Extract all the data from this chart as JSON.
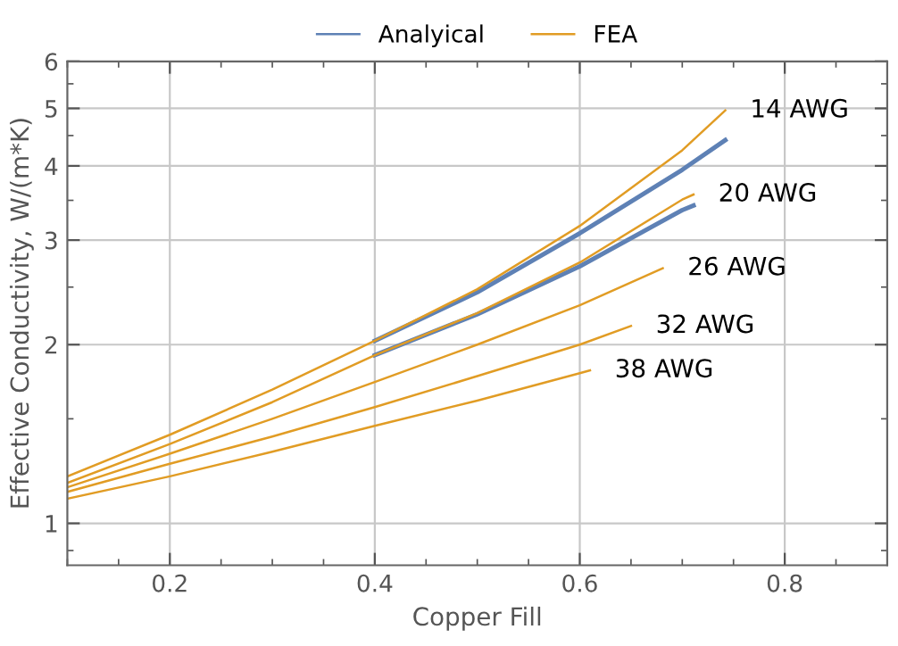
{
  "chart_data": {
    "type": "line",
    "xlabel": "Copper Fill",
    "ylabel": "Effective Conductivity, W/(m*K)",
    "log": "y",
    "xlim": [
      0.1,
      0.9
    ],
    "ylim": [
      0.85,
      6
    ],
    "xticks": [
      0.2,
      0.4,
      0.6,
      0.8
    ],
    "yticks": [
      1,
      2,
      3,
      4,
      5,
      6
    ],
    "grid": true,
    "legend": "top",
    "marker": "none",
    "line_style": "solid",
    "series": [
      {
        "name": "Analyical",
        "color": "#5e81b5",
        "x": [
          0.4,
          0.5,
          0.6,
          0.7,
          0.742
        ],
        "values": [
          2.03,
          2.45,
          3.08,
          3.94,
          4.42
        ]
      },
      {
        "color": "#5e81b5",
        "x": [
          0.4,
          0.5,
          0.6,
          0.7,
          0.711
        ],
        "values": [
          1.92,
          2.25,
          2.71,
          3.37,
          3.43
        ]
      },
      {
        "name": "FEA",
        "color": "#e19c24",
        "x": [
          0.1,
          0.2,
          0.3,
          0.4,
          0.5,
          0.6,
          0.7,
          0.742
        ],
        "values": [
          1.2,
          1.41,
          1.68,
          2.03,
          2.48,
          3.17,
          4.25,
          4.96
        ]
      },
      {
        "color": "#e19c24",
        "x": [
          0.1,
          0.2,
          0.3,
          0.4,
          0.5,
          0.6,
          0.7,
          0.711
        ],
        "values": [
          1.17,
          1.36,
          1.6,
          1.92,
          2.26,
          2.75,
          3.51,
          3.58
        ]
      },
      {
        "color": "#e19c24",
        "x": [
          0.1,
          0.2,
          0.3,
          0.4,
          0.5,
          0.6,
          0.681
        ],
        "values": [
          1.15,
          1.31,
          1.5,
          1.73,
          2.0,
          2.33,
          2.69
        ]
      },
      {
        "color": "#e19c24",
        "x": [
          0.1,
          0.2,
          0.3,
          0.4,
          0.5,
          0.6,
          0.65
        ],
        "values": [
          1.13,
          1.26,
          1.4,
          1.57,
          1.77,
          2.0,
          2.15
        ]
      },
      {
        "color": "#e19c24",
        "x": [
          0.1,
          0.2,
          0.3,
          0.4,
          0.5,
          0.6,
          0.61
        ],
        "values": [
          1.1,
          1.2,
          1.32,
          1.46,
          1.61,
          1.79,
          1.81
        ]
      }
    ],
    "annotations": [
      "14 AWG",
      "20 AWG",
      "26 AWG",
      "32 AWG",
      "38 AWG"
    ]
  }
}
